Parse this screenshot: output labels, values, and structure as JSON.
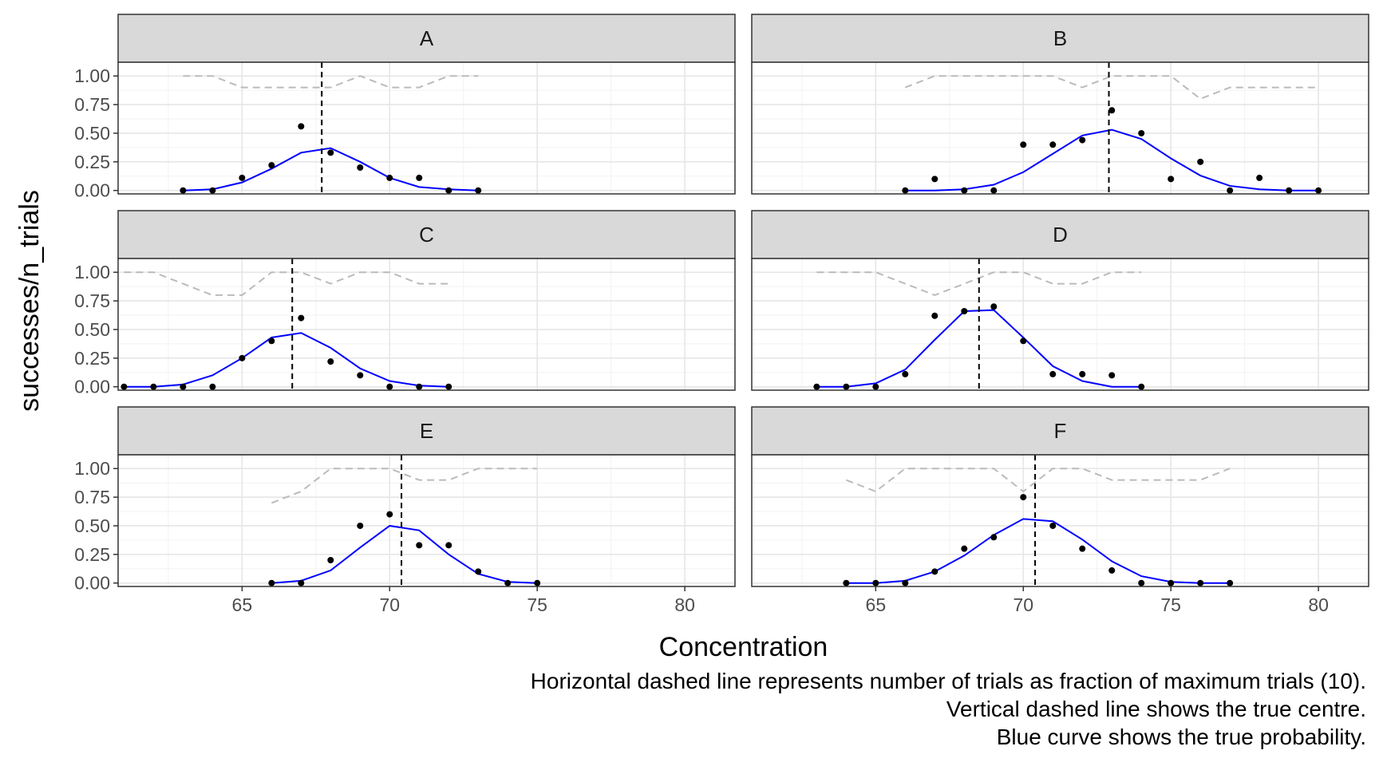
{
  "chart_data": {
    "type": "scatter",
    "xlabel": "Concentration",
    "ylabel": "successes/n_trials",
    "xlim": [
      60.8,
      81.7
    ],
    "ylim": [
      -0.03,
      1.12
    ],
    "x_ticks": [
      65,
      70,
      75,
      80
    ],
    "y_ticks": [
      "0.00",
      "0.25",
      "0.50",
      "0.75",
      "1.00"
    ],
    "grid": true,
    "colors": {
      "curve": "#0000ff",
      "points": "#000000",
      "trials_line": "#bbbbbb",
      "centre_line": "#000000",
      "strip_bg": "#d9d9d9"
    },
    "caption": [
      "Horizontal dashed line represents number of trials as fraction of maximum trials (10).",
      "Vertical dashed line shows the true centre.",
      "Blue curve shows the true probability."
    ],
    "panels": [
      {
        "label": "A",
        "centre": 67.7,
        "trials_fraction": {
          "x": [
            63,
            64,
            65,
            66,
            67,
            68,
            69,
            70,
            71,
            72,
            73
          ],
          "y": [
            1,
            1,
            0.9,
            0.9,
            0.9,
            0.9,
            1,
            0.9,
            0.9,
            1,
            1
          ]
        },
        "points": {
          "x": [
            63,
            64,
            65,
            66,
            67,
            68,
            69,
            70,
            71,
            72,
            73
          ],
          "y": [
            0,
            0,
            0.11,
            0.22,
            0.56,
            0.33,
            0.2,
            0.11,
            0.11,
            0,
            0
          ]
        },
        "curve": {
          "x": [
            63,
            64,
            65,
            66,
            67,
            68,
            69,
            70,
            71,
            72,
            73
          ],
          "y": [
            0,
            0.01,
            0.07,
            0.19,
            0.33,
            0.37,
            0.25,
            0.11,
            0.03,
            0.01,
            0
          ]
        }
      },
      {
        "label": "B",
        "centre": 72.9,
        "trials_fraction": {
          "x": [
            66,
            67,
            68,
            69,
            70,
            71,
            72,
            73,
            74,
            75,
            76,
            77,
            78,
            79,
            80
          ],
          "y": [
            0.9,
            1,
            1,
            1,
            1,
            1,
            0.9,
            1,
            1,
            1,
            0.8,
            0.9,
            0.9,
            0.9,
            0.9
          ]
        },
        "points": {
          "x": [
            66,
            67,
            68,
            69,
            70,
            71,
            72,
            73,
            74,
            75,
            76,
            77,
            78,
            79,
            80
          ],
          "y": [
            0,
            0.1,
            0,
            0,
            0.4,
            0.4,
            0.44,
            0.7,
            0.5,
            0.1,
            0.25,
            0,
            0.11,
            0,
            0
          ]
        },
        "curve": {
          "x": [
            66,
            67,
            68,
            69,
            70,
            71,
            72,
            73,
            74,
            75,
            76,
            77,
            78,
            79,
            80
          ],
          "y": [
            0,
            0,
            0.01,
            0.05,
            0.16,
            0.32,
            0.48,
            0.53,
            0.45,
            0.28,
            0.13,
            0.04,
            0.01,
            0,
            0
          ]
        }
      },
      {
        "label": "C",
        "centre": 66.7,
        "trials_fraction": {
          "x": [
            61,
            62,
            63,
            64,
            65,
            66,
            67,
            68,
            69,
            70,
            71,
            72
          ],
          "y": [
            1,
            1,
            0.9,
            0.8,
            0.8,
            1,
            1,
            0.9,
            1,
            1,
            0.9,
            0.9
          ]
        },
        "points": {
          "x": [
            61,
            62,
            63,
            64,
            65,
            66,
            67,
            68,
            69,
            70,
            71,
            72
          ],
          "y": [
            0,
            0,
            0,
            0,
            0.25,
            0.4,
            0.6,
            0.22,
            0.1,
            0,
            0,
            0
          ]
        },
        "curve": {
          "x": [
            61,
            62,
            63,
            64,
            65,
            66,
            67,
            68,
            69,
            70,
            71,
            72
          ],
          "y": [
            0,
            0,
            0.02,
            0.1,
            0.25,
            0.43,
            0.47,
            0.34,
            0.16,
            0.05,
            0.01,
            0
          ]
        }
      },
      {
        "label": "D",
        "centre": 68.5,
        "trials_fraction": {
          "x": [
            63,
            64,
            65,
            66,
            67,
            68,
            69,
            70,
            71,
            72,
            73,
            74
          ],
          "y": [
            1,
            1,
            1,
            0.9,
            0.8,
            0.9,
            1,
            1,
            0.9,
            0.9,
            1,
            1
          ]
        },
        "points": {
          "x": [
            63,
            64,
            65,
            66,
            67,
            68,
            69,
            70,
            71,
            72,
            73,
            74
          ],
          "y": [
            0,
            0,
            0,
            0.11,
            0.62,
            0.66,
            0.7,
            0.4,
            0.11,
            0.11,
            0.1,
            0
          ]
        },
        "curve": {
          "x": [
            63,
            64,
            65,
            66,
            67,
            68,
            69,
            70,
            71,
            72,
            73,
            74
          ],
          "y": [
            0,
            0,
            0.03,
            0.15,
            0.41,
            0.66,
            0.67,
            0.43,
            0.18,
            0.05,
            0,
            0
          ]
        }
      },
      {
        "label": "E",
        "centre": 70.4,
        "trials_fraction": {
          "x": [
            66,
            67,
            68,
            69,
            70,
            71,
            72,
            73,
            74,
            75
          ],
          "y": [
            0.7,
            0.8,
            1,
            1,
            1,
            0.9,
            0.9,
            1,
            1,
            1
          ]
        },
        "points": {
          "x": [
            66,
            67,
            68,
            69,
            70,
            71,
            72,
            73,
            74,
            75
          ],
          "y": [
            0,
            0,
            0.2,
            0.5,
            0.6,
            0.33,
            0.33,
            0.1,
            0,
            0
          ]
        },
        "curve": {
          "x": [
            66,
            67,
            68,
            69,
            70,
            71,
            72,
            73,
            74,
            75
          ],
          "y": [
            0,
            0.02,
            0.11,
            0.31,
            0.5,
            0.46,
            0.25,
            0.08,
            0.01,
            0
          ]
        }
      },
      {
        "label": "F",
        "centre": 70.4,
        "trials_fraction": {
          "x": [
            64,
            65,
            66,
            67,
            68,
            69,
            70,
            71,
            72,
            73,
            74,
            75,
            76,
            77
          ],
          "y": [
            0.9,
            0.8,
            1,
            1,
            1,
            1,
            0.8,
            1,
            1,
            0.9,
            0.9,
            0.9,
            0.9,
            1
          ]
        },
        "points": {
          "x": [
            64,
            65,
            66,
            67,
            68,
            69,
            70,
            71,
            72,
            73,
            74,
            75,
            76,
            77
          ],
          "y": [
            0,
            0,
            0,
            0.1,
            0.3,
            0.4,
            0.75,
            0.5,
            0.3,
            0.11,
            0,
            0,
            0,
            0
          ]
        },
        "curve": {
          "x": [
            64,
            65,
            66,
            67,
            68,
            69,
            70,
            71,
            72,
            73,
            74,
            75,
            76,
            77
          ],
          "y": [
            0,
            0,
            0.02,
            0.1,
            0.24,
            0.42,
            0.56,
            0.54,
            0.38,
            0.19,
            0.06,
            0.01,
            0,
            0
          ]
        }
      }
    ]
  }
}
